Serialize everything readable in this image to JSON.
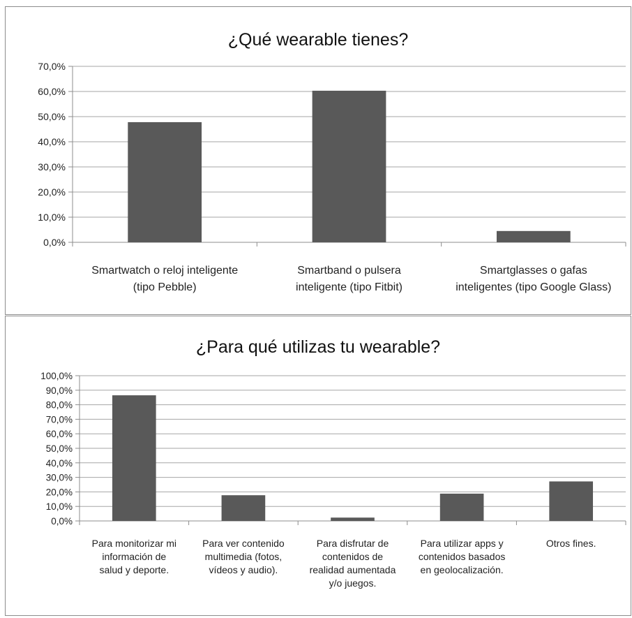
{
  "chart_data": [
    {
      "type": "bar",
      "title": "¿Qué wearable tienes?",
      "xlabel": "",
      "ylabel": "",
      "ylim": [
        0,
        70
      ],
      "yticks": [
        "0,0%",
        "10,0%",
        "20,0%",
        "30,0%",
        "40,0%",
        "50,0%",
        "60,0%",
        "70,0%"
      ],
      "categories": [
        "Smartwatch o reloj inteligente (tipo Pebble)",
        "Smartband o pulsera inteligente (tipo Fitbit)",
        "Smartglasses o gafas inteligentes (tipo Google Glass)"
      ],
      "category_lines": [
        [
          "Smartwatch o reloj inteligente",
          "(tipo Pebble)"
        ],
        [
          "Smartband o pulsera",
          "inteligente (tipo Fitbit)"
        ],
        [
          "Smartglasses o gafas",
          "inteligentes (tipo Google Glass)"
        ]
      ],
      "values": [
        47.8,
        60.3,
        4.5
      ],
      "bar_color": "#595959",
      "grid": true,
      "legend": "none"
    },
    {
      "type": "bar",
      "title": "¿Para qué utilizas tu wearable?",
      "xlabel": "",
      "ylabel": "",
      "ylim": [
        0,
        100
      ],
      "yticks": [
        "0,0%",
        "10,0%",
        "20,0%",
        "30,0%",
        "40,0%",
        "50,0%",
        "60,0%",
        "70,0%",
        "80,0%",
        "90,0%",
        "100,0%"
      ],
      "categories": [
        "Para monitorizar mi información de salud y deporte.",
        "Para ver contenido multimedia (fotos, vídeos y audio).",
        "Para disfrutar de contenidos de realidad aumentada y/o juegos.",
        "Para utilizar apps y contenidos basados en geolocalización.",
        "Otros fines."
      ],
      "category_lines": [
        [
          "Para monitorizar mi",
          "información de",
          "salud y deporte."
        ],
        [
          "Para ver contenido",
          "multimedia (fotos,",
          "vídeos y audio)."
        ],
        [
          "Para disfrutar de",
          "contenidos de",
          "realidad aumentada",
          "y/o juegos."
        ],
        [
          "Para utilizar apps y",
          "contenidos basados",
          "en geolocalización."
        ],
        [
          "Otros fines."
        ]
      ],
      "values": [
        86.5,
        17.7,
        2.3,
        18.8,
        27.2
      ],
      "bar_color": "#595959",
      "grid": true,
      "legend": "none"
    }
  ]
}
